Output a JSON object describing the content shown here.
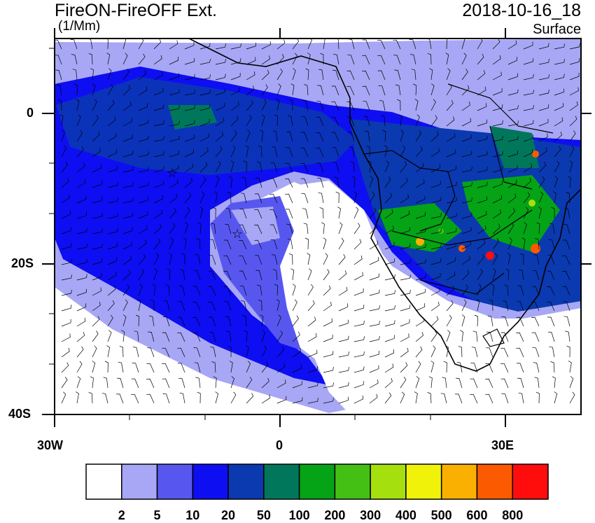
{
  "header": {
    "title": "FireON-FireOFF Ext.",
    "units": "(1/Mm)",
    "datetime": "2018-10-16_18",
    "level": "Surface"
  },
  "axes": {
    "lat_labels": [
      "0",
      "20S",
      "40S"
    ],
    "lon_labels": [
      "30W",
      "0",
      "30E"
    ]
  },
  "colorbar": {
    "labels": [
      "2",
      "5",
      "10",
      "20",
      "50",
      "100",
      "200",
      "300",
      "400",
      "500",
      "600",
      "800"
    ],
    "colors": [
      "#ffffff",
      "#a7a7f5",
      "#5757f0",
      "#0e0ef2",
      "#0b39b0",
      "#00775a",
      "#05a316",
      "#44bf14",
      "#a6df0e",
      "#f1f20a",
      "#f9b000",
      "#fb5a00",
      "#ff0d0d"
    ]
  },
  "map_colors": {
    "ocean_light": "#a7a7f5",
    "mid_blue": "#5757f0",
    "blue": "#0e0ef2",
    "dark_blue": "#0b39b0",
    "coast": "#000000"
  }
}
